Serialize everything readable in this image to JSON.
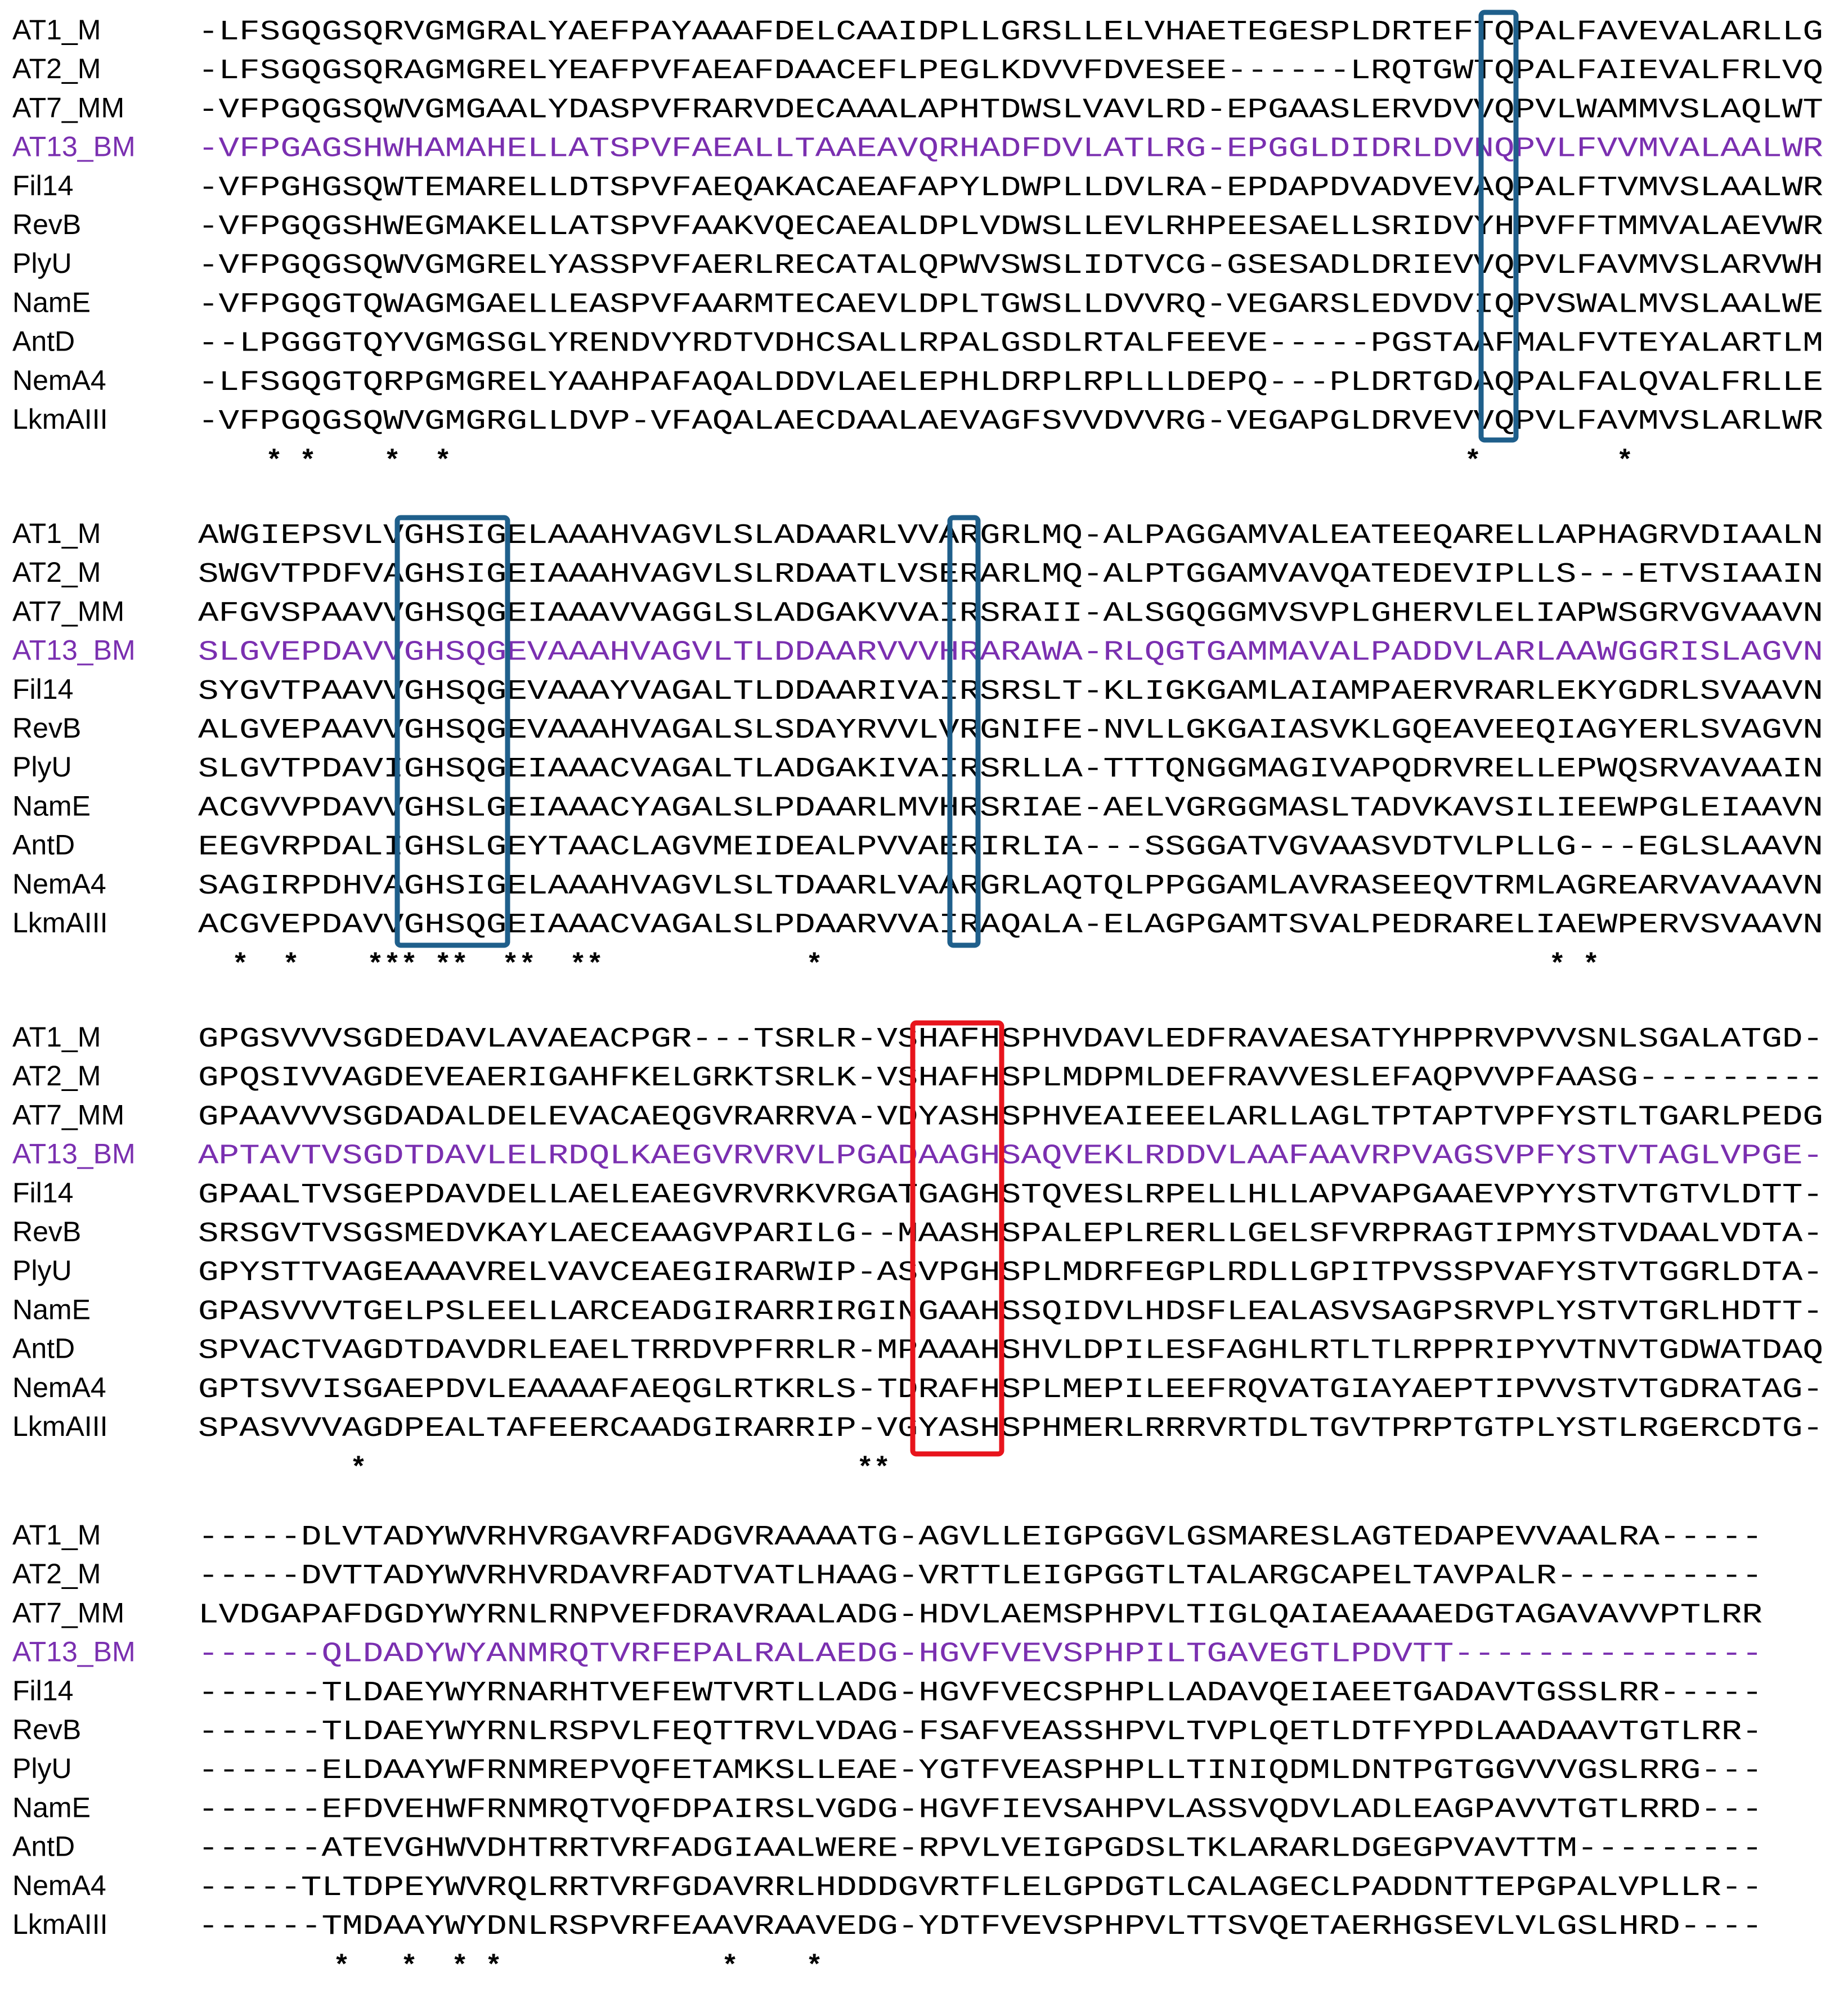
{
  "colors": {
    "highlight": "#7a2fb0",
    "box_blue": "#1f5f8b",
    "box_red": "#e8141c",
    "text": "#000000"
  },
  "highlight_name": "AT13_BM",
  "blocks": [
    {
      "rows": [
        {
          "name": "AT1_M",
          "seq": "-LFSGQGSQRVGMGRALYAEFPAYAAAFDELCAAIDPLLGRSLLELVHAETEGESPLDRTEFTQPALFAVEVALARLLG"
        },
        {
          "name": "AT2_M",
          "seq": "-LFSGQGSQRAGMGRELYEAFPVFAEAFDAACEFLPEGLKDVVFDVESEE------LRQTGWTQPALFAIEVALFRLVQ"
        },
        {
          "name": "AT7_MM",
          "seq": "-VFPGQGSQWVGMGAALYDASPVFRARVDECAAALAPHTDWSLVAVLRD-EPGAASLERVDVVQPVLWAMMVSLAQLWT"
        },
        {
          "name": "AT13_BM",
          "seq": "-VFPGAGSHWHAMAHELLATSPVFAEALLTAAEAVQRHADFDVLATLRG-EPGGLDIDRLDVNQPVLFVVMVALAALWR"
        },
        {
          "name": "Fil14",
          "seq": "-VFPGHGSQWTEMARELLDTSPVFAEQAKACAEAFAPYLDWPLLDVLRA-EPDAPDVADVEVAQPALFTVMVSLAALWR"
        },
        {
          "name": "RevB",
          "seq": "-VFPGQGSHWEGMAKELLATSPVFAAKVQECAEALDPLVDWSLLEVLRHPEESAELLSRIDVYHPVFFTMMVALAEVWR"
        },
        {
          "name": "PlyU",
          "seq": "-VFPGQGSQWVGMGRELYASSPVFAERLRECATALQPWVSWSLIDTVCG-GSESADLDRIEVVQPVLFAVMVSLARVWH"
        },
        {
          "name": "NamE",
          "seq": "-VFPGQGTQWAGMGAELLEASPVFAARMTECAEVLDPLTGWSLLDVVRQ-VEGARSLEDVDVIQPVSWALMVSLAALWE"
        },
        {
          "name": "AntD",
          "seq": "--LPGGGTQYVGMGSGLYRENDVYRDTVDHCSALLRPALGSDLRTALFEEVE-----PGSTAAFMALFVTEYALARTLM"
        },
        {
          "name": "NemA4",
          "seq": "-LFSGQGTQRPGMGRELYAAHPAFAQALDDVLAELEPHLDRPLRPLLLDEPQ---PLDRTGDAQPALFALQVALFRLLE"
        },
        {
          "name": "LkmAIII",
          "seq": "-VFPGQGSQWVGMGRGLLDVP-VFAQALAECDAALAEVAGFSVVDVVRG-VEGAPGLDRVEVVQPVLFAVMVSLARLWR"
        }
      ],
      "consensus": "    * *    *  *                                                            *        *    "
    },
    {
      "rows": [
        {
          "name": "AT1_M",
          "seq": "AWGIEPSVLVGHSIGELAAAHVAGVLSLADAARLVVARGRLMQ-ALPAGGAMVALEATEEQARELLAPHAGRVDIAALN"
        },
        {
          "name": "AT2_M",
          "seq": "SWGVTPDFVAGHSIGEIAAAHVAGVLSLRDAATLVSERARLMQ-ALPTGGAMVAVQATEDEVIPLLS---ETVSIAAIN"
        },
        {
          "name": "AT7_MM",
          "seq": "AFGVSPAAVVGHSQGEIAAAVVAGGLSLADGAKVVAIRSRAII-ALSGQGGMVSVPLGHERVLELIAPWSGRVGVAAVN"
        },
        {
          "name": "AT13_BM",
          "seq": "SLGVEPDAVVGHSQGEVAAAHVAGVLTLDDAARVVVHRARAWA-RLQGTGAMMAVALPADDVLARLAAWGGRISLAGVN"
        },
        {
          "name": "Fil14",
          "seq": "SYGVTPAAVVGHSQGEVAAAYVAGALTLDDAARIVAIRSRSLT-KLIGKGAMLAIAMPAERVRARLEKYGDRLSVAAVN"
        },
        {
          "name": "RevB",
          "seq": "ALGVEPAAVVGHSQGEVAAAHVAGALSLSDAYRVVLVRGNIFE-NVLLGKGAIASVKLGQEAVEEQIAGYERLSVAGVN"
        },
        {
          "name": "PlyU",
          "seq": "SLGVTPDAVIGHSQGEIAAACVAGALTLADGAKIVAIRSRLLA-TTTQNGGMAGIVAPQDRVRELLEPWQSRVAVAAIN"
        },
        {
          "name": "NamE",
          "seq": "ACGVVPDAVVGHSLGEIAAACYAGALSLPDAARLMVHRSRIAE-AELVGRGGMASLTADVKAVSILIEEWPGLEIAAVN"
        },
        {
          "name": "AntD",
          "seq": "EEGVRPDALIGHSLGEYTAACLAGVMEIDEALPVVAERIRLIA---SSGGATVGVAASVDTVLPLLG---EGLSLAAVN"
        },
        {
          "name": "NemA4",
          "seq": "SAGIRPDHVAGHSIGELAAAHVAGVLSLTDAARLVAARGRLAQTQLPPGGAMLAVRASEEQVTRMLAGREARVAVAAVN"
        },
        {
          "name": "LkmAIII",
          "seq": "ACGVEPDAVVGHSQGEIAAACVAGALSLPDAARVVAIRAQALA-ELAGPGAMTSVALPEDRARELIAEWPERVSVAAVN"
        }
      ],
      "consensus": "  *  *    *** **  **  **            *                                           * *"
    },
    {
      "rows": [
        {
          "name": "AT1_M",
          "seq": "GPGSVVVSGDEDAVLAVAEACPGR---TSRLR-VSHAFHSPHVDAVLEDFRAVAESATYHPPRVPVVSNLSGALATGD-"
        },
        {
          "name": "AT2_M",
          "seq": "GPQSIVVAGDEVEAERIGAHFKELGRKTSRLK-VSHAFHSPLMDPMLDEFRAVVESLEFAQPVVPFAASG---------"
        },
        {
          "name": "AT7_MM",
          "seq": "GPAAVVVSGDADALDELEVACAEQGVRARRVA-VDYASHSPHVEAIEEELARLLAGLTPTAPTVPFYSTLTGARLPEDG"
        },
        {
          "name": "AT13_BM",
          "seq": "APTAVTVSGDTDAVLELRDQLKAEGVRVRVLPGADAAGHSAQVEKLRDDVLAAFAAVRPVAGSVPFYSTVTAGLVPGE-"
        },
        {
          "name": "Fil14",
          "seq": "GPAALTVSGEPDAVDELLAELEAEGVRVRKVRGATGAGHSTQVESLRPELLHLLAPVAPGAAEVPYYSTVTGTVLDTT-"
        },
        {
          "name": "RevB",
          "seq": "SRSGVTVSGSMEDVKAYLAECEAAGVPARILG--MAASHSPALEPLRERLLGELSFVRPRAGTIPMYSTVDAALVDTA-"
        },
        {
          "name": "PlyU",
          "seq": "GPYSTTVAGEAAAVRELVAVCEAEGIRARWIP-ASVPGHSPLMDRFEGPLRDLLGPITPVSSPVAFYSTVTGGRLDTA-"
        },
        {
          "name": "NamE",
          "seq": "GPASVVVTGELPSLEELLARCEADGIRARRIRGINGAAHSSQIDVLHDSFLEALASVSAGPSRVPLYSTVTGRLHDTT-"
        },
        {
          "name": "AntD",
          "seq": "SPVACTVAGDTDAVDRLEAELTRRDVPFRRLR-MPAAAHSHVLDPILESFAGHLRTLTLRPPRIPYVTNVTGDWATDAQ"
        },
        {
          "name": "NemA4",
          "seq": "GPTSVVISGAEPDVLEAAAAFAEQGLRTKRLS-TDRAFHSPLMEPILEEFRQVATGIAYAEPTIPVVSTVTGDRATAG-"
        },
        {
          "name": "LkmAIII",
          "seq": "SPASVVVAGDPEALTAFEERCAADGIRARRIP-VGYASHSPHMERLRRRVRTDLTGVTPRPTGTPLYSTLRGERCDTG-"
        }
      ],
      "consensus": "         *                             **                                        "
    },
    {
      "rows": [
        {
          "name": "AT1_M",
          "seq": "-----DLVTADYWVRHVRGAVRFADGVRAAAATG-AGVLLEIGPGGVLGSMARESLAGTEDAPEVVAALRA-----"
        },
        {
          "name": "AT2_M",
          "seq": "-----DVTTADYWVRHVRDAVRFADTVATLHAAG-VRTTLEIGPGGTLTALARGCAPELTAVPALR----------"
        },
        {
          "name": "AT7_MM",
          "seq": "LVDGAPAFDGDYWYRNLRNPVEFDRAVRAALADG-HDVLAEMSPHPVLTIGLQAIAEAAAEDGTAGAVAVVPTLRR"
        },
        {
          "name": "AT13_BM",
          "seq": "------QLDADYWYANMRQTVRFEPALRALAEDG-HGVFVEVSPHPILTGAVEGTLPDVTT---------------"
        },
        {
          "name": "Fil14",
          "seq": "------TLDAEYWYRNARHTVEFEWTVRTLLADG-HGVFVECSPHPLLADAVQEIAEETGADAVTGSSLRR-----"
        },
        {
          "name": "RevB",
          "seq": "------TLDAEYWYRNLRSPVLFEQTTRVLVDAG-FSAFVEASSHPVLTVPLQETLDTFYPDLAADAAVTGTLRR-"
        },
        {
          "name": "PlyU",
          "seq": "------ELDAAYWFRNMREPVQFETAMKSLLEAE-YGTFVEASPHPLLTINIQDMLDNTPGTGGVVVGSLRRG---"
        },
        {
          "name": "NamE",
          "seq": "------EFDVEHWFRNMRQTVQFDPAIRSLVGDG-HGVFIEVSAHPVLASSVQDVLADLEAGPAVVTGTLRRD---"
        },
        {
          "name": "AntD",
          "seq": "------ATEVGHWVDHTRRTVRFADGIAALWERE-RPVLVEIGPGDSLTKLARARLDGEGPVAVTTM---------"
        },
        {
          "name": "NemA4",
          "seq": "-----TLTDPEYWVRQLRRTVRFGDAVRRLHDDDGVRTFLELGPDGTLCALAGECLPADDNTTEPGPALVPLLR--"
        },
        {
          "name": "LkmAIII",
          "seq": "------TMDAAYWYDNLRSPVRFEAAVRAAVEDG-YDTFVEVSPHPVLTTSVQETAERHGSEVLVLGSLHRD----"
        }
      ],
      "consensus": "        *   *  * *             *    *             "
    }
  ]
}
